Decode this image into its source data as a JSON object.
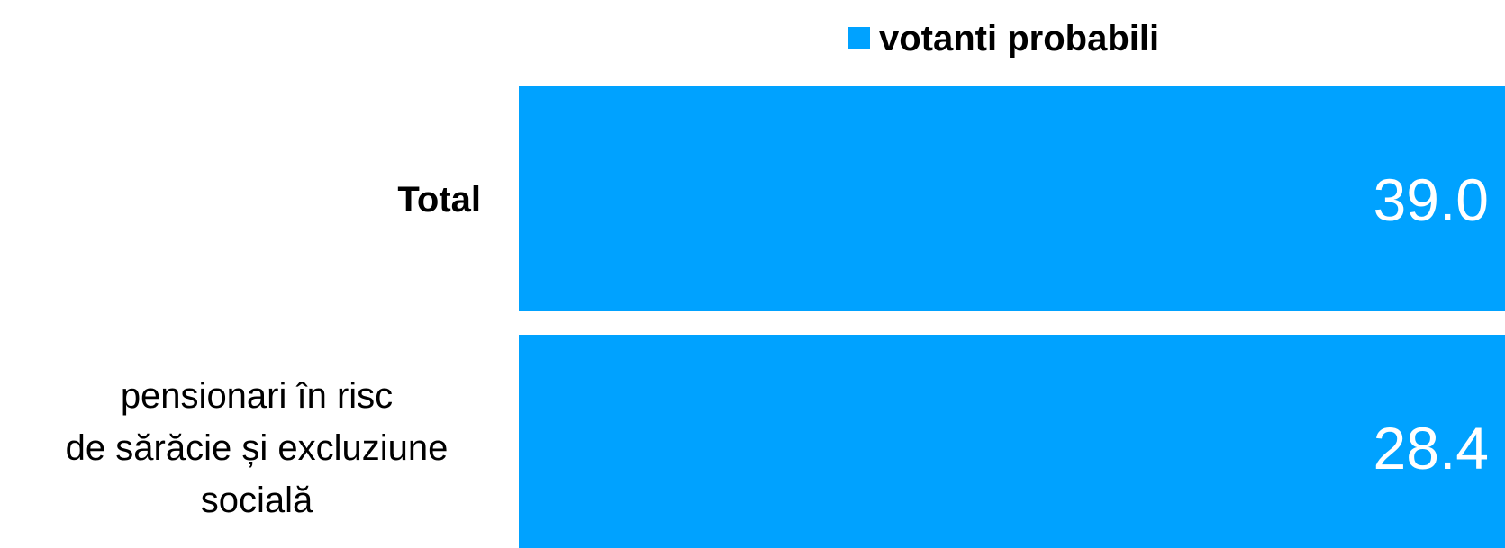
{
  "chart_data": {
    "type": "bar",
    "orientation": "horizontal",
    "categories": [
      "Total",
      "pensionari în risc\nde sărăcie și excluziune\nsocială"
    ],
    "series": [
      {
        "name": "votanti probabili",
        "values": [
          39.0,
          28.4
        ],
        "color": "#00a2ff"
      }
    ],
    "value_labels": [
      "39.0",
      "28.4"
    ],
    "xlim": [
      0,
      40
    ],
    "grid": false,
    "legend_position": "top"
  }
}
